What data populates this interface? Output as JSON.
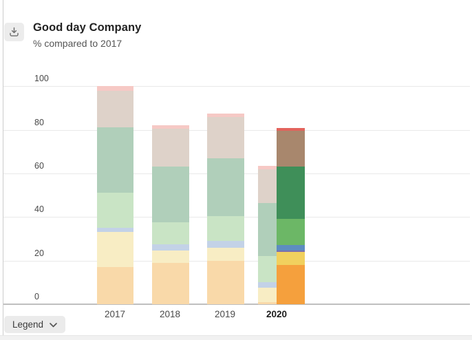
{
  "header": {
    "title": "Good day Company",
    "subtitle": "% compared to 2017"
  },
  "toolbar": {
    "download_icon": "download-icon"
  },
  "legend_button": {
    "label": "Legend",
    "chevron_icon": "chevron-down-icon",
    "state": "collapsed"
  },
  "axes": {
    "y_ticks": [
      "0",
      "20",
      "40",
      "60",
      "80",
      "100"
    ],
    "x_labels": [
      "2017",
      "2018",
      "2019",
      "2020"
    ],
    "highlighted_x_label": "2020"
  },
  "palette": {
    "solid": {
      "orange": "#f5a03d",
      "yellow": "#f1d05e",
      "purple": "#7b6fae",
      "blue": "#5d8dc0",
      "green": "#6cb766",
      "dark-green": "#3f8f59",
      "brown": "#a8876d",
      "red": "#e2635c"
    },
    "faded": {
      "orange": "#f9d9a9",
      "yellow": "#f8edc4",
      "purple": "#d7d2e7",
      "blue": "#c3d2e7",
      "green": "#c9e4c5",
      "dark-green": "#b0cfba",
      "brown": "#ded2c9",
      "red": "#f6c9c5"
    }
  },
  "chart_data": {
    "type": "bar",
    "subtype": "stacked-column",
    "title": "Good day Company",
    "subtitle": "% compared to 2017",
    "xlabel": "",
    "ylabel": "% compared to 2017",
    "ylim": [
      0,
      100
    ],
    "yticks": [
      0,
      20,
      40,
      60,
      80,
      100
    ],
    "grid": true,
    "legend_position": "collapsed-button-bottom-left",
    "series_note": "legend collapsed in screenshot; series identified by segment color, listed bottom to top; 2017-2019 and the left 2020 column are drawn faded, the right 2020 column is drawn in solid colors",
    "categories": [
      "2017",
      "2018",
      "2019",
      "2020"
    ],
    "bars": [
      {
        "category": "2017",
        "style": "faded",
        "total": 100,
        "segments": [
          {
            "color": "orange",
            "value": 17
          },
          {
            "color": "yellow",
            "value": 16
          },
          {
            "color": "blue",
            "value": 2
          },
          {
            "color": "green",
            "value": 16
          },
          {
            "color": "dark-green",
            "value": 30
          },
          {
            "color": "brown",
            "value": 17
          },
          {
            "color": "red",
            "value": 2
          }
        ]
      },
      {
        "category": "2018",
        "style": "faded",
        "total": 82,
        "segments": [
          {
            "color": "orange",
            "value": 19
          },
          {
            "color": "yellow",
            "value": 5.5
          },
          {
            "color": "blue",
            "value": 3
          },
          {
            "color": "green",
            "value": 10
          },
          {
            "color": "dark-green",
            "value": 25.5
          },
          {
            "color": "brown",
            "value": 17.5
          },
          {
            "color": "red",
            "value": 1.5
          }
        ]
      },
      {
        "category": "2019",
        "style": "faded",
        "total": 87.5,
        "segments": [
          {
            "color": "orange",
            "value": 20
          },
          {
            "color": "yellow",
            "value": 6
          },
          {
            "color": "blue",
            "value": 3
          },
          {
            "color": "green",
            "value": 11.5
          },
          {
            "color": "dark-green",
            "value": 26.5
          },
          {
            "color": "brown",
            "value": 19
          },
          {
            "color": "red",
            "value": 1.5
          }
        ]
      },
      {
        "category": "2020",
        "style": "faded",
        "total": 63.5,
        "segments": [
          {
            "color": "orange",
            "value": 1
          },
          {
            "color": "yellow",
            "value": 6.5
          },
          {
            "color": "blue",
            "value": 2.5
          },
          {
            "color": "green",
            "value": 12
          },
          {
            "color": "dark-green",
            "value": 24.5
          },
          {
            "color": "brown",
            "value": 15.5
          },
          {
            "color": "red",
            "value": 1.5
          }
        ]
      },
      {
        "category": "2020",
        "style": "solid",
        "total": 80.7,
        "segments": [
          {
            "color": "orange",
            "value": 18
          },
          {
            "color": "yellow",
            "value": 6
          },
          {
            "color": "purple",
            "value": 0.7
          },
          {
            "color": "blue",
            "value": 2.3
          },
          {
            "color": "green",
            "value": 12
          },
          {
            "color": "dark-green",
            "value": 24
          },
          {
            "color": "brown",
            "value": 16.5
          },
          {
            "color": "red",
            "value": 1.2
          }
        ]
      }
    ]
  }
}
